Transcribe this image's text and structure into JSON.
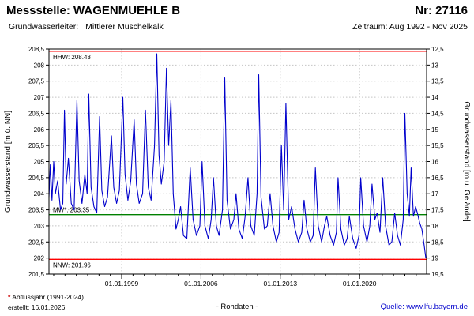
{
  "header": {
    "title": "Messstelle: WAGENMUEHLE B",
    "number": "Nr: 27116",
    "aquifer_label": "Grundwasserleiter:",
    "aquifer_value": "Mittlerer Muschelkalk",
    "period": "Zeitraum: Aug 1992 - Nov 2025"
  },
  "chart_data": {
    "type": "line",
    "title": "",
    "xlabel": "",
    "ylabel_left": "Grundwasserstand [m ü. NN]",
    "ylabel_right": "Grundwasserstand [m u. Gelände]",
    "ylim_left": [
      201.5,
      208.5
    ],
    "ylim_right": [
      19.5,
      12.5
    ],
    "xlim": [
      1992.583,
      2025.917
    ],
    "grid": true,
    "legend": "none",
    "x_ticks": [
      {
        "v": 1999.0,
        "label": "01.01.1999"
      },
      {
        "v": 2006.0,
        "label": "01.01.2006"
      },
      {
        "v": 2013.0,
        "label": "01.01.2013"
      },
      {
        "v": 2020.0,
        "label": "01.01.2020"
      }
    ],
    "y_ticks": [
      {
        "v": 208.5,
        "left": "208,5",
        "right": "12,5"
      },
      {
        "v": 208.0,
        "left": "208",
        "right": "13"
      },
      {
        "v": 207.5,
        "left": "207,5",
        "right": "13,5"
      },
      {
        "v": 207.0,
        "left": "207",
        "right": "14"
      },
      {
        "v": 206.5,
        "left": "206,5",
        "right": "14,5"
      },
      {
        "v": 206.0,
        "left": "206",
        "right": "15"
      },
      {
        "v": 205.5,
        "left": "205,5",
        "right": "15,5"
      },
      {
        "v": 205.0,
        "left": "205",
        "right": "16"
      },
      {
        "v": 204.5,
        "left": "204,5",
        "right": "16,5"
      },
      {
        "v": 204.0,
        "left": "204",
        "right": "17"
      },
      {
        "v": 203.5,
        "left": "203,5",
        "right": "17,5"
      },
      {
        "v": 203.0,
        "left": "203",
        "right": "18"
      },
      {
        "v": 202.5,
        "left": "202,5",
        "right": "18,5"
      },
      {
        "v": 202.0,
        "left": "202",
        "right": "19"
      },
      {
        "v": 201.5,
        "left": "201,5",
        "right": "19,5"
      }
    ],
    "reference_lines": [
      {
        "name": "HHW",
        "label": "HHW: 208.43",
        "value": 208.43,
        "color": "#ff0000",
        "label_position": "below"
      },
      {
        "name": "MW",
        "label": "MW*: 203.35",
        "value": 203.35,
        "color": "#008000",
        "label_position": "above"
      },
      {
        "name": "NNW",
        "label": "NNW: 201.96",
        "value": 201.96,
        "color": "#ff0000",
        "label_position": "below"
      }
    ],
    "series": [
      {
        "name": "Grundwasserstand Rohdaten",
        "color": "#0000cc",
        "points": [
          [
            1992.58,
            203.9
          ],
          [
            1992.7,
            204.9
          ],
          [
            1992.85,
            203.8
          ],
          [
            1993.0,
            205.0
          ],
          [
            1993.15,
            204.0
          ],
          [
            1993.35,
            204.4
          ],
          [
            1993.6,
            203.5
          ],
          [
            1993.8,
            203.7
          ],
          [
            1993.95,
            206.6
          ],
          [
            1994.1,
            204.3
          ],
          [
            1994.3,
            205.1
          ],
          [
            1994.55,
            203.7
          ],
          [
            1994.8,
            203.5
          ],
          [
            1995.05,
            206.9
          ],
          [
            1995.25,
            204.4
          ],
          [
            1995.5,
            203.7
          ],
          [
            1995.75,
            204.6
          ],
          [
            1995.95,
            204.0
          ],
          [
            1996.1,
            207.1
          ],
          [
            1996.3,
            204.2
          ],
          [
            1996.55,
            203.6
          ],
          [
            1996.8,
            203.4
          ],
          [
            1997.05,
            206.4
          ],
          [
            1997.25,
            204.1
          ],
          [
            1997.5,
            203.6
          ],
          [
            1997.75,
            203.9
          ],
          [
            1998.1,
            205.8
          ],
          [
            1998.3,
            204.2
          ],
          [
            1998.55,
            203.7
          ],
          [
            1998.8,
            204.1
          ],
          [
            1999.1,
            207.0
          ],
          [
            1999.3,
            204.6
          ],
          [
            1999.55,
            203.8
          ],
          [
            1999.8,
            204.4
          ],
          [
            2000.1,
            206.3
          ],
          [
            2000.3,
            204.3
          ],
          [
            2000.55,
            203.7
          ],
          [
            2000.85,
            204.0
          ],
          [
            2001.1,
            206.6
          ],
          [
            2001.35,
            204.2
          ],
          [
            2001.6,
            203.8
          ],
          [
            2001.9,
            205.5
          ],
          [
            2002.1,
            208.35
          ],
          [
            2002.3,
            205.2
          ],
          [
            2002.5,
            204.3
          ],
          [
            2002.75,
            205.0
          ],
          [
            2002.95,
            207.9
          ],
          [
            2003.15,
            205.5
          ],
          [
            2003.35,
            206.9
          ],
          [
            2003.55,
            204.0
          ],
          [
            2003.8,
            202.9
          ],
          [
            2004.0,
            203.2
          ],
          [
            2004.2,
            203.6
          ],
          [
            2004.45,
            202.7
          ],
          [
            2004.75,
            202.6
          ],
          [
            2005.05,
            204.8
          ],
          [
            2005.3,
            203.2
          ],
          [
            2005.6,
            202.7
          ],
          [
            2005.9,
            203.0
          ],
          [
            2006.1,
            205.0
          ],
          [
            2006.35,
            203.0
          ],
          [
            2006.65,
            202.6
          ],
          [
            2006.9,
            203.2
          ],
          [
            2007.1,
            204.5
          ],
          [
            2007.35,
            203.0
          ],
          [
            2007.6,
            202.7
          ],
          [
            2007.9,
            203.5
          ],
          [
            2008.1,
            207.6
          ],
          [
            2008.3,
            203.8
          ],
          [
            2008.6,
            202.9
          ],
          [
            2008.9,
            203.2
          ],
          [
            2009.1,
            204.0
          ],
          [
            2009.35,
            202.9
          ],
          [
            2009.65,
            202.6
          ],
          [
            2009.9,
            203.3
          ],
          [
            2010.15,
            204.5
          ],
          [
            2010.4,
            203.0
          ],
          [
            2010.7,
            202.7
          ],
          [
            2010.95,
            204.0
          ],
          [
            2011.1,
            207.7
          ],
          [
            2011.3,
            203.9
          ],
          [
            2011.6,
            202.9
          ],
          [
            2011.85,
            203.0
          ],
          [
            2012.1,
            204.0
          ],
          [
            2012.35,
            203.0
          ],
          [
            2012.65,
            202.5
          ],
          [
            2012.9,
            202.8
          ],
          [
            2013.1,
            205.5
          ],
          [
            2013.3,
            203.5
          ],
          [
            2013.5,
            206.8
          ],
          [
            2013.75,
            203.2
          ],
          [
            2014.0,
            203.6
          ],
          [
            2014.3,
            202.9
          ],
          [
            2014.6,
            202.5
          ],
          [
            2014.9,
            202.8
          ],
          [
            2015.1,
            203.8
          ],
          [
            2015.35,
            202.9
          ],
          [
            2015.65,
            202.5
          ],
          [
            2015.9,
            202.7
          ],
          [
            2016.1,
            204.8
          ],
          [
            2016.35,
            203.0
          ],
          [
            2016.65,
            202.5
          ],
          [
            2016.9,
            203.0
          ],
          [
            2017.1,
            203.3
          ],
          [
            2017.4,
            202.7
          ],
          [
            2017.7,
            202.4
          ],
          [
            2017.95,
            202.8
          ],
          [
            2018.1,
            204.5
          ],
          [
            2018.35,
            202.9
          ],
          [
            2018.65,
            202.4
          ],
          [
            2018.9,
            202.6
          ],
          [
            2019.1,
            203.3
          ],
          [
            2019.4,
            202.6
          ],
          [
            2019.7,
            202.3
          ],
          [
            2019.95,
            202.7
          ],
          [
            2020.1,
            204.5
          ],
          [
            2020.35,
            203.0
          ],
          [
            2020.65,
            202.5
          ],
          [
            2020.9,
            203.0
          ],
          [
            2021.1,
            204.3
          ],
          [
            2021.35,
            203.2
          ],
          [
            2021.55,
            203.4
          ],
          [
            2021.8,
            202.8
          ],
          [
            2022.05,
            204.5
          ],
          [
            2022.3,
            203.0
          ],
          [
            2022.6,
            202.4
          ],
          [
            2022.85,
            202.5
          ],
          [
            2023.1,
            203.4
          ],
          [
            2023.35,
            202.7
          ],
          [
            2023.6,
            202.4
          ],
          [
            2023.85,
            203.2
          ],
          [
            2024.0,
            206.5
          ],
          [
            2024.2,
            204.0
          ],
          [
            2024.4,
            203.3
          ],
          [
            2024.55,
            204.8
          ],
          [
            2024.75,
            203.3
          ],
          [
            2024.95,
            203.6
          ],
          [
            2025.1,
            203.4
          ],
          [
            2025.3,
            203.1
          ],
          [
            2025.5,
            202.9
          ],
          [
            2025.7,
            202.4
          ],
          [
            2025.85,
            202.0
          ]
        ]
      }
    ]
  },
  "footer": {
    "footnote_star": "*",
    "footnote_text": " Abflussjahr (1991-2024)",
    "created": "erstellt: 16.01.2026",
    "data_type": "- Rohdaten -",
    "source": "Quelle: www.lfu.bayern.de"
  },
  "colors": {
    "series": "#0000cc",
    "hhw_nnw": "#ff0000",
    "mw": "#008000",
    "grid": "#c4c4c4",
    "link": "#0000cc"
  }
}
